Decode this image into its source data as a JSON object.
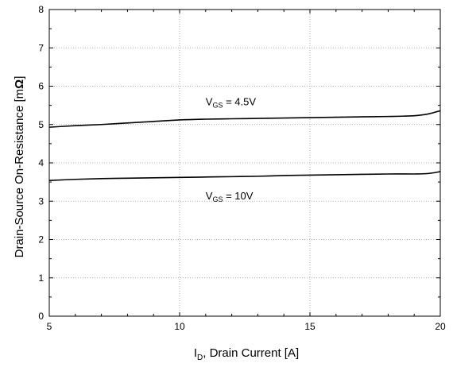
{
  "chart_data": {
    "type": "line",
    "xlabel_main": "I",
    "xlabel_sub": "D",
    "xlabel_rest": ", Drain Current [A]",
    "ylabel_main": "Drain-Source On-Resistance [m",
    "ylabel_omega": "Ω",
    "ylabel_end": "]",
    "xlim": [
      5,
      20
    ],
    "ylim": [
      0,
      8
    ],
    "xticks": [
      5,
      10,
      15,
      20
    ],
    "yticks": [
      0,
      1,
      2,
      3,
      4,
      5,
      6,
      7,
      8
    ],
    "grid": true,
    "series": [
      {
        "label_main": "V",
        "label_sub": "GS",
        "label_rest": " = 4.5V",
        "label_pos": [
          11.0,
          5.5
        ],
        "x": [
          5,
          6,
          7,
          8,
          9,
          10,
          11,
          12,
          13,
          14,
          15,
          16,
          17,
          18,
          19,
          19.5,
          20
        ],
        "y": [
          4.93,
          4.97,
          5.0,
          5.04,
          5.08,
          5.12,
          5.14,
          5.15,
          5.16,
          5.17,
          5.18,
          5.19,
          5.2,
          5.21,
          5.23,
          5.27,
          5.36
        ]
      },
      {
        "label_main": "V",
        "label_sub": "GS",
        "label_rest": " = 10V",
        "label_pos": [
          11.0,
          3.05
        ],
        "x": [
          5,
          6,
          7,
          8,
          9,
          10,
          11,
          12,
          13,
          14,
          15,
          16,
          17,
          18,
          19,
          19.5,
          20
        ],
        "y": [
          3.54,
          3.57,
          3.59,
          3.6,
          3.61,
          3.62,
          3.63,
          3.64,
          3.65,
          3.67,
          3.68,
          3.69,
          3.7,
          3.71,
          3.71,
          3.72,
          3.77
        ]
      }
    ]
  }
}
